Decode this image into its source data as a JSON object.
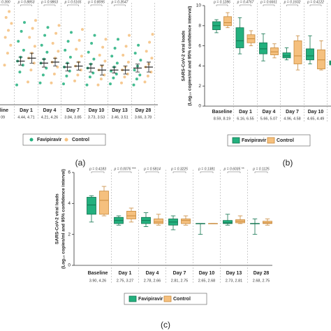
{
  "chart_data": [
    {
      "type": "strip",
      "label": "(a)",
      "ylim": [
        0,
        10
      ],
      "categories": [
        "eline",
        "Day 1",
        "Day 4",
        "Day 7",
        "Day 10",
        "Day 13",
        "Day 28"
      ],
      "summary_labels": [
        "09",
        "4.44, 4.71",
        "4.21, 4.26",
        "3.84, 3.85",
        "3.73, 3.53",
        "3.46, 3.51",
        "3.66, 3.78"
      ],
      "p_values": [
        "p = 0.390",
        "p = 0.8853",
        "p = 0.9863",
        "p = 0.5165",
        "p = 0.8095",
        "p = 0.3547"
      ],
      "series": [
        {
          "name": "Favipiravir",
          "color": "#23b07e",
          "points": [
            [],
            [
              2.0,
              3.3,
              4.0,
              4.4,
              4.8,
              5.5,
              6.4,
              7.4,
              8.3
            ],
            [
              2.2,
              3.0,
              3.7,
              4.2,
              4.6,
              5.3,
              6.0,
              7.0,
              7.8
            ],
            [
              2.1,
              2.9,
              3.4,
              3.8,
              4.2,
              4.8,
              5.5,
              6.4,
              7.3
            ],
            [
              2.0,
              2.8,
              3.2,
              3.7,
              4.1,
              4.6,
              5.3,
              6.2,
              7.0
            ],
            [
              2.1,
              2.7,
              3.1,
              3.4,
              3.8,
              4.2,
              4.9,
              5.7,
              6.6
            ],
            [
              2.0,
              2.6,
              3.0,
              3.5,
              3.9,
              4.5,
              5.2,
              6.0
            ]
          ],
          "means": [
            null,
            4.4,
            4.2,
            3.8,
            3.7,
            3.5,
            3.7
          ],
          "errors": [
            null,
            0.4,
            0.4,
            0.4,
            0.4,
            0.3,
            0.4
          ]
        },
        {
          "name": "Control",
          "color": "#f5c07e",
          "points": [
            [
              4.0,
              5.2,
              6.0,
              6.8,
              7.5,
              8.2,
              8.8,
              9.4
            ],
            [
              2.3,
              3.5,
              4.2,
              4.7,
              5.2,
              5.9,
              6.8,
              7.7,
              8.5
            ],
            [
              2.2,
              3.1,
              3.8,
              4.3,
              4.7,
              5.4,
              6.2,
              7.2,
              8.0
            ],
            [
              2.4,
              3.0,
              3.5,
              3.9,
              4.3,
              4.9,
              5.6,
              6.5,
              7.6
            ],
            [
              2.0,
              2.6,
              3.0,
              3.5,
              3.9,
              4.4,
              5.0,
              5.8,
              6.6
            ],
            [
              2.2,
              2.8,
              3.1,
              3.5,
              3.8,
              4.3,
              5.0,
              5.9,
              7.0
            ],
            [
              2.3,
              2.9,
              3.3,
              3.8,
              4.1,
              4.7,
              5.4,
              6.3,
              7.1
            ]
          ],
          "means": [
            null,
            4.7,
            4.3,
            3.9,
            3.5,
            3.5,
            3.8
          ],
          "errors": [
            null,
            0.5,
            0.4,
            0.4,
            0.5,
            0.4,
            0.5
          ]
        }
      ]
    },
    {
      "type": "box",
      "label": "(b)",
      "ylim": [
        0,
        10
      ],
      "yticks": [
        0,
        2,
        4,
        6,
        8,
        10
      ],
      "ylabel": "SARS-CoV-2 viral loads",
      "ylabel2": "(Log₁₀ copies/ml and 95% confidence interval)",
      "categories": [
        "Baseline",
        "Day 1",
        "Day 4",
        "Day 7",
        "Day 10",
        "D"
      ],
      "summary_labels": [
        "8.59, 8.19",
        "6.16, 6.55",
        "5.66, 5.07",
        "4.96, 4.58",
        "4.65, 4.49",
        null
      ],
      "p_values": [
        "p = 0.1286",
        "p = 0.4767",
        "p = 0.6661",
        "p = 0.1602",
        "p = 0.4122",
        "p = 0.1"
      ],
      "series": [
        {
          "name": "Favipiravir",
          "color": "#23b07e",
          "boxes": [
            [
              7.3,
              7.6,
              8.0,
              8.4,
              8.6
            ],
            [
              5.2,
              5.8,
              6.5,
              7.8,
              8.8
            ],
            [
              4.5,
              5.2,
              5.7,
              6.3,
              7.2
            ],
            [
              4.6,
              4.8,
              5.0,
              5.3,
              5.8
            ],
            [
              4.2,
              4.6,
              5.0,
              5.7,
              7.0
            ],
            [
              4.0,
              4.1,
              4.3,
              4.5,
              4.8
            ]
          ]
        },
        {
          "name": "Control",
          "color": "#f5c07e",
          "boxes": [
            [
              7.8,
              8.0,
              8.3,
              8.9,
              9.3
            ],
            [
              6.0,
              6.3,
              6.7,
              7.1,
              7.5
            ],
            [
              4.8,
              5.1,
              5.4,
              5.8,
              6.2
            ],
            [
              3.6,
              4.2,
              5.0,
              6.5,
              7.0
            ],
            [
              3.6,
              3.7,
              4.6,
              5.6,
              6.5
            ],
            [
              null,
              null,
              null,
              null,
              null
            ]
          ]
        }
      ]
    },
    {
      "type": "box",
      "label": "(c)",
      "ylim": [
        0,
        6
      ],
      "yticks": [
        0,
        2,
        4,
        6
      ],
      "ylabel": "SARS-CoV-2 viral loads",
      "ylabel2": "(Log₁₀ copies/ml and 95% confidence interval)",
      "categories": [
        "Baseline",
        "Day 1",
        "Day 4",
        "Day 7",
        "Day 10",
        "Day 13",
        "Day 28"
      ],
      "summary_labels": [
        "3.90, 4.26",
        "2.75, 3.27",
        "2.78, 2.66",
        "2.81, 2.75",
        "2.65, 2.68",
        "2.73, 2.81",
        "2.68, 2.75"
      ],
      "p_values": [
        "p = 0.4183",
        "p = 0.0076 ***",
        "p = 0.5814",
        "p = 0.3225",
        "p = 0.1381",
        "p = 0.6035 **",
        "p = 0.1125"
      ],
      "series": [
        {
          "name": "Favipiravir",
          "color": "#23b07e",
          "boxes": [
            [
              2.8,
              3.3,
              3.9,
              4.4,
              4.5
            ],
            [
              2.6,
              2.7,
              2.9,
              3.1,
              3.2
            ],
            [
              2.5,
              2.7,
              2.9,
              3.1,
              3.4
            ],
            [
              2.3,
              2.6,
              2.8,
              3.0,
              3.2
            ],
            [
              2.0,
              2.7,
              2.7,
              2.7,
              2.7
            ],
            [
              2.6,
              2.7,
              2.75,
              2.9,
              3.3
            ],
            [
              2.0,
              2.7,
              2.7,
              2.7,
              3.0
            ]
          ]
        },
        {
          "name": "Control",
          "color": "#f5c07e",
          "boxes": [
            [
              3.2,
              3.3,
              4.2,
              4.8,
              5.1
            ],
            [
              2.8,
              3.0,
              3.2,
              3.5,
              3.7
            ],
            [
              2.6,
              2.7,
              2.8,
              3.0,
              3.3
            ],
            [
              2.6,
              2.7,
              2.9,
              3.0,
              3.2
            ],
            [
              2.7,
              2.7,
              2.7,
              2.7,
              2.7
            ],
            [
              2.7,
              2.75,
              2.85,
              2.95,
              3.2
            ],
            [
              2.6,
              2.7,
              2.75,
              2.85,
              3.0
            ]
          ]
        }
      ]
    }
  ]
}
